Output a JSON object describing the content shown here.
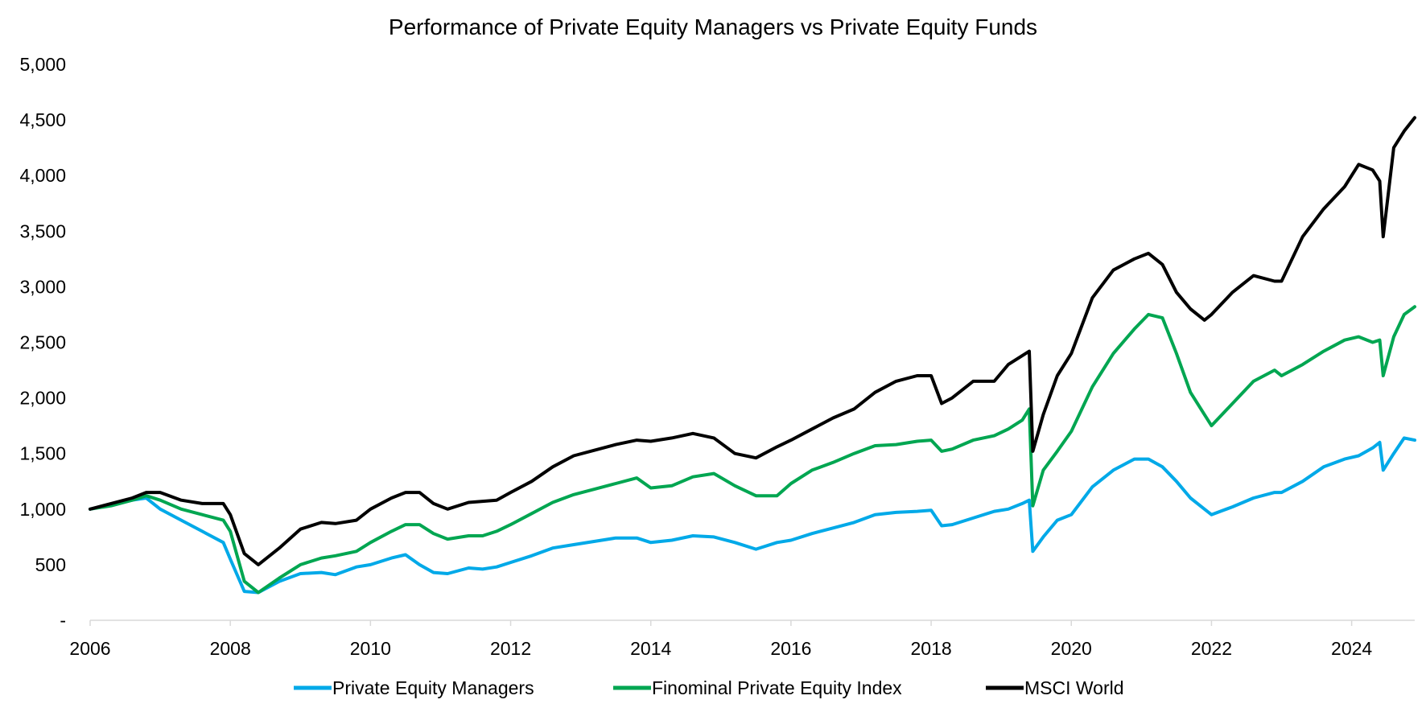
{
  "chart_data": {
    "type": "line",
    "title": "Performance of Private Equity Managers vs Private Equity Funds",
    "xlabel": "",
    "ylabel": "",
    "xlim": [
      2006,
      2024.9
    ],
    "ylim": [
      0,
      5000
    ],
    "x_ticks": [
      "2006",
      "2008",
      "2010",
      "2012",
      "2014",
      "2016",
      "2018",
      "2020",
      "2022",
      "2024"
    ],
    "y_ticks": [
      "-",
      "500",
      "1,000",
      "1,500",
      "2,000",
      "2,500",
      "3,000",
      "3,500",
      "4,000",
      "4,500",
      "5,000"
    ],
    "grid": false,
    "legend_position": "bottom",
    "series": [
      {
        "name": "Private Equity Managers",
        "color": "#00a9e8",
        "x": [
          2006,
          2006.3,
          2006.6,
          2006.8,
          2007,
          2007.3,
          2007.6,
          2007.9,
          2008,
          2008.2,
          2008.4,
          2008.7,
          2009,
          2009.3,
          2009.5,
          2009.8,
          2010,
          2010.3,
          2010.5,
          2010.7,
          2010.9,
          2011.1,
          2011.4,
          2011.6,
          2011.8,
          2012,
          2012.3,
          2012.6,
          2012.9,
          2013.2,
          2013.5,
          2013.8,
          2014,
          2014.3,
          2014.6,
          2014.9,
          2015.2,
          2015.5,
          2015.8,
          2016,
          2016.3,
          2016.6,
          2016.9,
          2017.2,
          2017.5,
          2017.8,
          2018,
          2018.15,
          2018.3,
          2018.6,
          2018.9,
          2019.1,
          2019.3,
          2019.4,
          2019.45,
          2019.6,
          2019.8,
          2020,
          2020.3,
          2020.6,
          2020.9,
          2021.1,
          2021.3,
          2021.5,
          2021.7,
          2021.9,
          2022,
          2022.3,
          2022.6,
          2022.9,
          2023,
          2023.3,
          2023.6,
          2023.9,
          2024.1,
          2024.3,
          2024.4,
          2024.45,
          2024.6,
          2024.75,
          2024.9
        ],
        "values": [
          1000,
          1040,
          1080,
          1100,
          1000,
          900,
          800,
          700,
          550,
          260,
          250,
          350,
          420,
          430,
          410,
          480,
          500,
          560,
          590,
          500,
          430,
          420,
          470,
          460,
          480,
          520,
          580,
          650,
          680,
          710,
          740,
          740,
          700,
          720,
          760,
          750,
          700,
          640,
          700,
          720,
          780,
          830,
          880,
          950,
          970,
          980,
          990,
          850,
          860,
          920,
          980,
          1000,
          1050,
          1080,
          620,
          750,
          900,
          950,
          1200,
          1350,
          1450,
          1450,
          1380,
          1250,
          1100,
          1000,
          950,
          1020,
          1100,
          1150,
          1150,
          1250,
          1380,
          1450,
          1480,
          1550,
          1600,
          1350,
          1500,
          1640,
          1620
        ]
      },
      {
        "name": "Finominal Private Equity Index",
        "color": "#00a651",
        "x": [
          2006,
          2006.3,
          2006.6,
          2006.8,
          2007,
          2007.3,
          2007.6,
          2007.9,
          2008,
          2008.2,
          2008.4,
          2008.7,
          2009,
          2009.3,
          2009.5,
          2009.8,
          2010,
          2010.3,
          2010.5,
          2010.7,
          2010.9,
          2011.1,
          2011.4,
          2011.6,
          2011.8,
          2012,
          2012.3,
          2012.6,
          2012.9,
          2013.2,
          2013.5,
          2013.8,
          2014,
          2014.3,
          2014.6,
          2014.9,
          2015.2,
          2015.5,
          2015.8,
          2016,
          2016.3,
          2016.6,
          2016.9,
          2017.2,
          2017.5,
          2017.8,
          2018,
          2018.15,
          2018.3,
          2018.6,
          2018.9,
          2019.1,
          2019.3,
          2019.4,
          2019.45,
          2019.6,
          2019.8,
          2020,
          2020.3,
          2020.6,
          2020.9,
          2021.1,
          2021.3,
          2021.5,
          2021.7,
          2021.9,
          2022,
          2022.3,
          2022.6,
          2022.9,
          2023,
          2023.3,
          2023.6,
          2023.9,
          2024.1,
          2024.3,
          2024.4,
          2024.45,
          2024.6,
          2024.75,
          2024.9
        ],
        "values": [
          1000,
          1030,
          1080,
          1120,
          1080,
          1000,
          950,
          900,
          800,
          350,
          250,
          380,
          500,
          560,
          580,
          620,
          700,
          800,
          860,
          860,
          780,
          730,
          760,
          760,
          800,
          860,
          960,
          1060,
          1130,
          1180,
          1230,
          1280,
          1190,
          1210,
          1290,
          1320,
          1210,
          1120,
          1120,
          1230,
          1350,
          1420,
          1500,
          1570,
          1580,
          1610,
          1620,
          1520,
          1540,
          1620,
          1660,
          1720,
          1800,
          1900,
          1030,
          1350,
          1520,
          1700,
          2100,
          2400,
          2620,
          2750,
          2720,
          2400,
          2050,
          1850,
          1750,
          1950,
          2150,
          2250,
          2200,
          2300,
          2420,
          2520,
          2550,
          2500,
          2520,
          2200,
          2550,
          2750,
          2820
        ]
      },
      {
        "name": "MSCI World",
        "color": "#000000",
        "x": [
          2006,
          2006.3,
          2006.6,
          2006.8,
          2007,
          2007.3,
          2007.6,
          2007.9,
          2008,
          2008.2,
          2008.4,
          2008.7,
          2009,
          2009.3,
          2009.5,
          2009.8,
          2010,
          2010.3,
          2010.5,
          2010.7,
          2010.9,
          2011.1,
          2011.4,
          2011.6,
          2011.8,
          2012,
          2012.3,
          2012.6,
          2012.9,
          2013.2,
          2013.5,
          2013.8,
          2014,
          2014.3,
          2014.6,
          2014.9,
          2015.2,
          2015.5,
          2015.8,
          2016,
          2016.3,
          2016.6,
          2016.9,
          2017.2,
          2017.5,
          2017.8,
          2018,
          2018.15,
          2018.3,
          2018.6,
          2018.9,
          2019.1,
          2019.3,
          2019.4,
          2019.45,
          2019.6,
          2019.8,
          2020,
          2020.3,
          2020.6,
          2020.9,
          2021.1,
          2021.3,
          2021.5,
          2021.7,
          2021.9,
          2022,
          2022.3,
          2022.6,
          2022.9,
          2023,
          2023.3,
          2023.6,
          2023.9,
          2024.1,
          2024.3,
          2024.4,
          2024.45,
          2024.6,
          2024.75,
          2024.9
        ],
        "values": [
          1000,
          1050,
          1100,
          1150,
          1150,
          1080,
          1050,
          1050,
          950,
          600,
          500,
          650,
          820,
          880,
          870,
          900,
          1000,
          1100,
          1150,
          1150,
          1050,
          1000,
          1060,
          1070,
          1080,
          1150,
          1250,
          1380,
          1480,
          1530,
          1580,
          1620,
          1610,
          1640,
          1680,
          1640,
          1500,
          1460,
          1560,
          1620,
          1720,
          1820,
          1900,
          2050,
          2150,
          2200,
          2200,
          1950,
          2000,
          2150,
          2150,
          2300,
          2380,
          2420,
          1520,
          1850,
          2200,
          2400,
          2900,
          3150,
          3250,
          3300,
          3200,
          2950,
          2800,
          2700,
          2750,
          2950,
          3100,
          3050,
          3050,
          3450,
          3700,
          3900,
          4100,
          4050,
          3950,
          3450,
          4250,
          4400,
          4520
        ]
      }
    ]
  }
}
